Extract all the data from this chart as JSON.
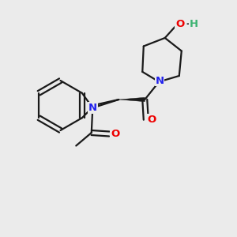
{
  "bg_color": "#EBEBEB",
  "bond_color": "#1a1a1a",
  "N_color": "#2222EE",
  "O_color": "#EE0000",
  "H_color": "#3CB371",
  "line_width": 1.6,
  "figsize": [
    3.0,
    3.0
  ],
  "dpi": 100,
  "xlim": [
    0,
    10
  ],
  "ylim": [
    0,
    10
  ]
}
